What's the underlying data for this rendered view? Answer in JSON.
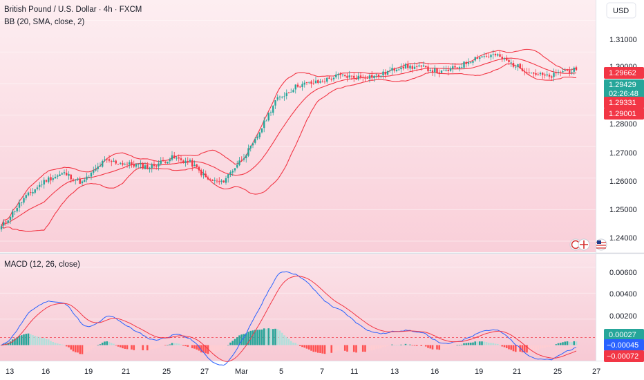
{
  "header": {
    "symbol_title": "British Pound / U.S. Dollar · 4h · FXCM",
    "indicator_title": "BB (20, SMA, close, 2)",
    "currency_button": "USD"
  },
  "price_axis": {
    "ticks": [
      "1.31000",
      "1.30000",
      "1.28000",
      "1.27000",
      "1.26000",
      "1.25000",
      "1.24000"
    ],
    "tags": [
      {
        "label": "1.29662",
        "value": 1.29662,
        "color": "#f23645"
      },
      {
        "label": "1.29429",
        "sublabel": "02:26:48",
        "value": 1.29429,
        "color": "#26a69a"
      },
      {
        "label": "1.29331",
        "value": 1.29331,
        "color": "#f23645"
      },
      {
        "label": "1.29001",
        "value": 1.29001,
        "color": "#f23645"
      }
    ]
  },
  "macd_panel": {
    "title": "MACD (12, 26, close)",
    "ticks": [
      "0.00600",
      "0.00400",
      "0.00200"
    ],
    "tags": [
      {
        "label": "0.00027",
        "value": 0.00027,
        "color": "#26a69a"
      },
      {
        "label": "−0.00045",
        "value": -0.00045,
        "color": "#2962ff"
      },
      {
        "label": "−0.00072",
        "value": -0.00072,
        "color": "#f23645"
      }
    ]
  },
  "time_axis": {
    "labels": [
      "13",
      "16",
      "19",
      "21",
      "25",
      "27",
      "Mar",
      "5",
      "7",
      "11",
      "13",
      "16",
      "19",
      "21",
      "25",
      "27"
    ]
  },
  "colors": {
    "up": "#26a69a",
    "down": "#f23645",
    "bands": "#f23645",
    "macd": "#2962ff",
    "signal": "#f23645",
    "hist_up_strong": "#26a69a",
    "hist_up_weak": "#b2dfdb",
    "hist_down_strong": "#ff5252",
    "hist_down_weak": "#ffcdd2"
  },
  "chart_data": [
    {
      "type": "candlestick",
      "title": "British Pound / U.S. Dollar · 4h · FXCM",
      "ylim": [
        1.2365,
        1.3165
      ],
      "close_anchors": [
        [
          0,
          1.2445
        ],
        [
          10,
          1.2535
        ],
        [
          20,
          1.2595
        ],
        [
          28,
          1.2615
        ],
        [
          36,
          1.2585
        ],
        [
          46,
          1.2655
        ],
        [
          56,
          1.2645
        ],
        [
          66,
          1.2635
        ],
        [
          76,
          1.2665
        ],
        [
          84,
          1.265
        ],
        [
          92,
          1.2595
        ],
        [
          98,
          1.2585
        ],
        [
          104,
          1.2635
        ],
        [
          112,
          1.2705
        ],
        [
          122,
          1.2845
        ],
        [
          132,
          1.2895
        ],
        [
          142,
          1.2905
        ],
        [
          150,
          1.2925
        ],
        [
          158,
          1.292
        ],
        [
          168,
          1.2925
        ],
        [
          178,
          1.2955
        ],
        [
          188,
          1.295
        ],
        [
          196,
          1.2935
        ],
        [
          204,
          1.2955
        ],
        [
          212,
          1.2985
        ],
        [
          220,
          1.299
        ],
        [
          228,
          1.296
        ],
        [
          236,
          1.2935
        ],
        [
          244,
          1.292
        ],
        [
          250,
          1.294
        ],
        [
          256,
          1.2943
        ]
      ],
      "bollinger": {
        "period": 20,
        "stddev": 2,
        "upper_last": 1.29662,
        "middle_last": 1.29331,
        "lower_last": 1.29001
      }
    },
    {
      "type": "line",
      "title": "MACD (12, 26, close)",
      "ylim": [
        -0.0012,
        0.007
      ],
      "series": [
        {
          "values_last": -0.00045
        },
        {
          "values_last": -0.00072
        }
      ],
      "histogram_last": 0.00027
    }
  ]
}
